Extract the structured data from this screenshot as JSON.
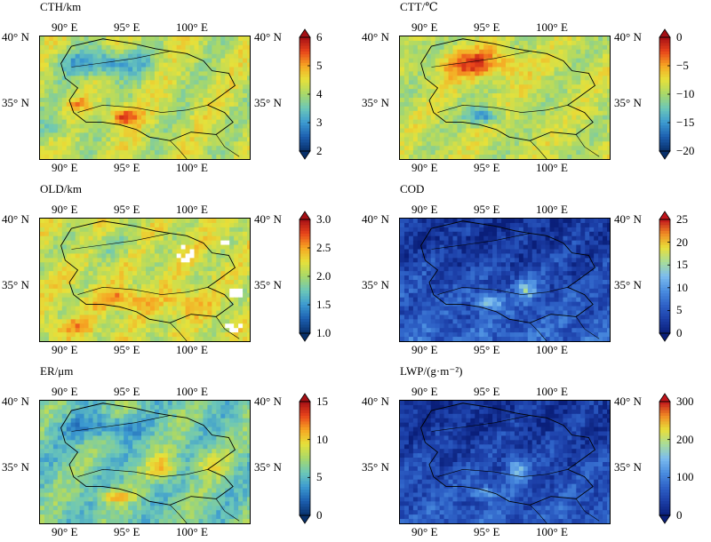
{
  "colors": {
    "rainbow": [
      "#08306b",
      "#1c5fb0",
      "#3c9ad0",
      "#6cc7b8",
      "#a8d86a",
      "#e6e13a",
      "#f6a623",
      "#e8441a",
      "#a50f15"
    ],
    "blues": [
      "#0a1f7a",
      "#1c3fa8",
      "#2f63c8",
      "#4b8ee0",
      "#7cbcee",
      "#a8dd9a",
      "#e8df3a",
      "#f08a24",
      "#c0141b"
    ],
    "border": "#000000"
  },
  "panels": [
    {
      "title": "CTH/km",
      "lat_labels": [
        "40° N",
        "35° N"
      ],
      "lon_labels": [
        "90° E",
        "95° E",
        "100° E"
      ],
      "colorbar_ticks": [
        "6",
        "5",
        "4",
        "3",
        "2"
      ],
      "colorbar_range": [
        2,
        6
      ],
      "palette": "rainbow",
      "field": "cth",
      "has_missing": false
    },
    {
      "title": "CTT/℃",
      "lat_labels": [
        "40° N",
        "35° N"
      ],
      "lon_labels": [
        "90° E",
        "95° E",
        "100° E"
      ],
      "colorbar_ticks": [
        "0",
        "−5",
        "−10",
        "−15",
        "−20"
      ],
      "colorbar_range": [
        -20,
        0
      ],
      "palette": "rainbow",
      "field": "ctt",
      "has_missing": false
    },
    {
      "title": "OLD/km",
      "lat_labels": [
        "40° N",
        "35° N"
      ],
      "lon_labels": [
        "90° E",
        "95° E",
        "100° E"
      ],
      "colorbar_ticks": [
        "3.0",
        "2.5",
        "2.0",
        "1.5",
        "1.0"
      ],
      "colorbar_range": [
        1.0,
        3.0
      ],
      "palette": "rainbow",
      "field": "old",
      "has_missing": true
    },
    {
      "title": "COD",
      "lat_labels": [
        "40° N",
        "35° N"
      ],
      "lon_labels": [
        "90° E",
        "95° E",
        "100° E"
      ],
      "colorbar_ticks": [
        "25",
        "20",
        "15",
        "10",
        "5",
        "0"
      ],
      "colorbar_range": [
        0,
        25
      ],
      "palette": "blues",
      "field": "cod",
      "has_missing": false
    },
    {
      "title": "ER/μm",
      "lat_labels": [
        "40° N",
        "35° N"
      ],
      "lon_labels": [
        "90° E",
        "95° E",
        "100° E"
      ],
      "colorbar_ticks": [
        "15",
        "10",
        "5",
        "0"
      ],
      "colorbar_range": [
        0,
        15
      ],
      "palette": "rainbow",
      "field": "er",
      "has_missing": false
    },
    {
      "title": "LWP/(g·m⁻²)",
      "lat_labels": [
        "40° N",
        "35° N"
      ],
      "lon_labels": [
        "90° E",
        "95° E",
        "100° E"
      ],
      "colorbar_ticks": [
        "300",
        "200",
        "100",
        "0"
      ],
      "colorbar_range": [
        0,
        300
      ],
      "palette": "blues",
      "field": "lwp",
      "has_missing": false
    }
  ]
}
